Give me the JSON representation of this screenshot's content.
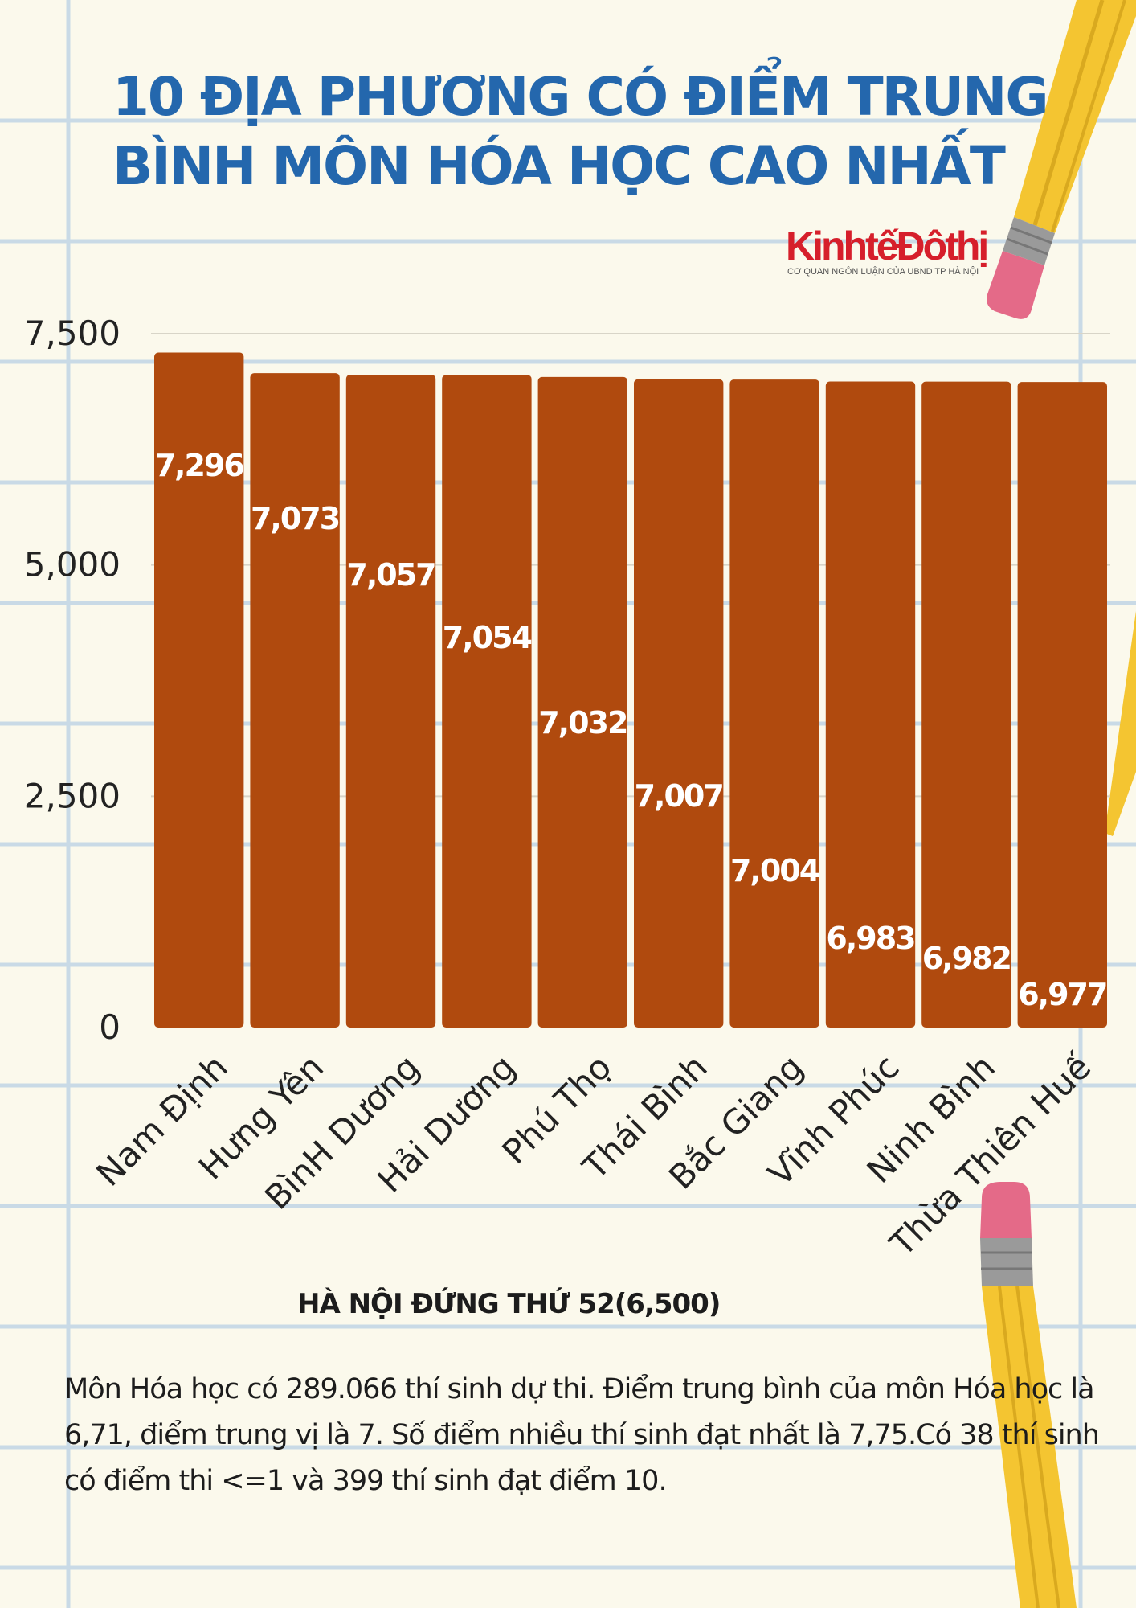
{
  "title": {
    "line1": "10 ĐỊA PHƯƠNG CÓ ĐIỂM TRUNG",
    "line2": "BÌNH MÔN HÓA HỌC CAO NHẤT"
  },
  "logo": {
    "name": "KinhtếĐôthị",
    "tagline": "CƠ QUAN NGÔN LUẬN CỦA UBND TP HÀ NỘI"
  },
  "chart_data": {
    "type": "bar",
    "categories": [
      "Nam Định",
      "Hưng Yên",
      "BìnH Dương",
      "Hải Dương",
      "Phú Thọ",
      "Thái Bình",
      "Bắc Giang",
      "Vĩnh Phúc",
      "Ninh Bình",
      "Thừa Thiên Huế"
    ],
    "values": [
      7.296,
      7.073,
      7.057,
      7.054,
      7.032,
      7.007,
      7.004,
      6.983,
      6.982,
      6.977
    ],
    "value_labels": [
      "7,296",
      "7,073",
      "7,057",
      "7,054",
      "7,032",
      "7,007",
      "7,004",
      "6,983",
      "6,982",
      "6,977"
    ],
    "y_ticks": [
      0,
      2.5,
      5,
      7.5
    ],
    "y_tick_labels": [
      "0",
      "2,500",
      "5,000",
      "7,500"
    ],
    "ylim": [
      0,
      7.5
    ],
    "grid": "horizontal",
    "bar_color": "#b04a0e",
    "label_color": "#ffffff"
  },
  "subtitle": "HÀ NỘI ĐỨNG THỨ 52(6,500)",
  "body_text": "Môn Hóa học có 289.066 thí sinh dự thi. Điểm trung bình của môn Hóa học là 6,71, điểm trung vị là 7. Số điểm nhiều thí sinh đạt nhất là 7,75.Có 38 thí sinh có điểm thi <=1 và 399 thí sinh đạt điểm 10.",
  "colors": {
    "background": "#fbf9ec",
    "grid_lines": "#c9dae6",
    "title": "#2467ad",
    "pencil_body": "#f4c531",
    "pencil_eraser": "#e46a88"
  }
}
